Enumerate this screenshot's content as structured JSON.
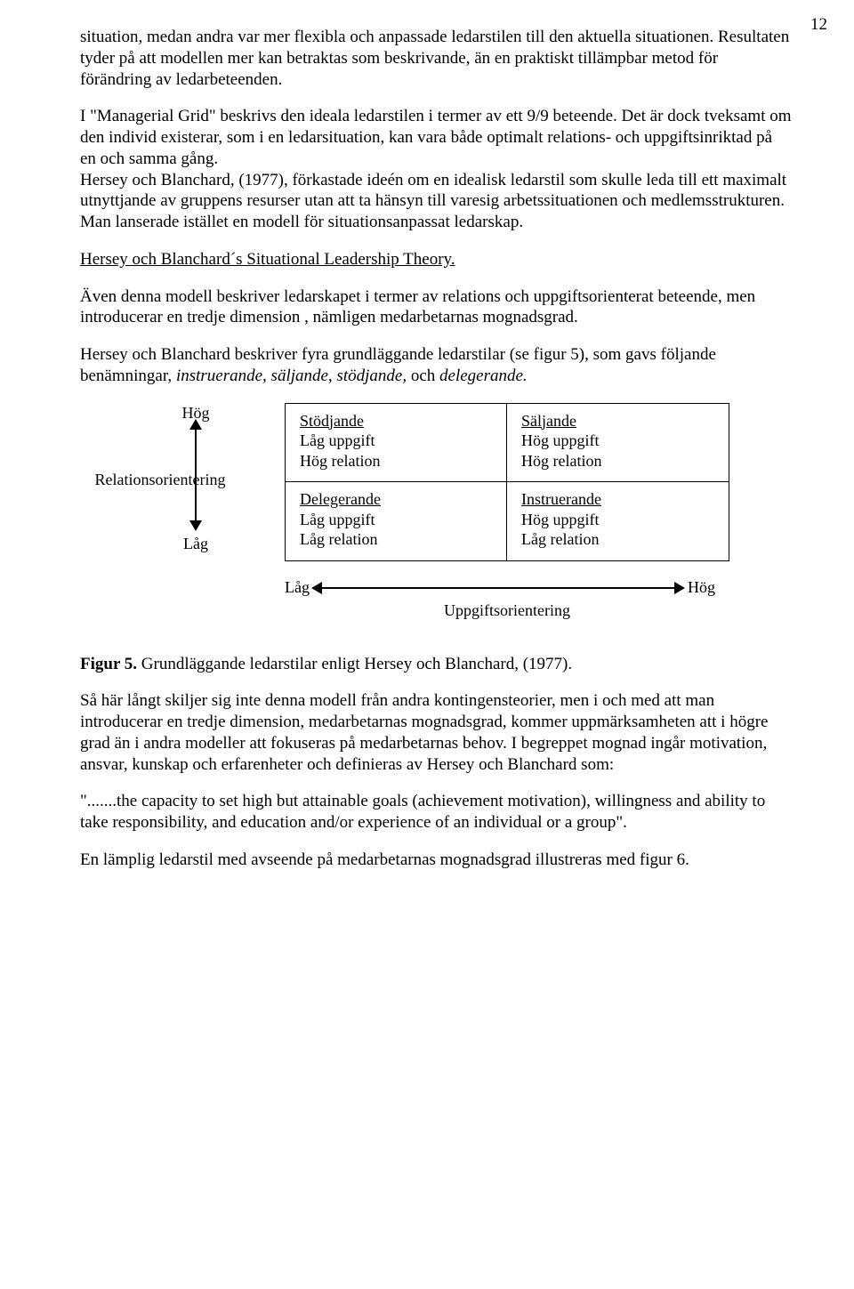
{
  "page_number": "12",
  "paragraphs": {
    "p1": "situation, medan andra var mer flexibla och anpassade ledarstilen till den aktuella situationen. Resultaten tyder på att modellen mer kan betraktas som beskrivande, än en praktiskt tillämpbar metod för förändring av ledarbeteenden.",
    "p2": "I \"Managerial Grid\" beskrivs den ideala ledarstilen i termer av ett 9/9 beteende. Det är dock tveksamt om den individ existerar, som i en ledarsituation, kan vara både optimalt relations- och uppgiftsinriktad på en och samma gång.",
    "p3": "Hersey och Blanchard, (1977), förkastade ideén om en idealisk ledarstil som skulle leda till ett maximalt utnyttjande av gruppens resurser utan att ta hänsyn till varesig arbetssituationen och medlemsstrukturen. Man lanserade istället en modell för situationsanpassat ledarskap.",
    "heading": "Hersey och Blanchard´s Situational Leadership Theory.",
    "p4": "Även denna modell beskriver ledarskapet i termer av relations och uppgiftsorienterat beteende, men introducerar en tredje dimension , nämligen medarbetarnas mognadsgrad.",
    "p5_a": "Hersey och Blanchard beskriver fyra grundläggande ledarstilar (se figur 5), som gavs följande benämningar, ",
    "p5_i": "instruerande, säljande, stödjande,",
    "p5_b": " och ",
    "p5_i2": "delegerande.",
    "caption_b": "Figur 5.",
    "caption": " Grundläggande ledarstilar enligt Hersey och Blanchard, (1977).",
    "p6": "Så här långt skiljer sig inte denna modell från andra kontingensteorier, men i och med att man introducerar en tredje dimension, medarbetarnas mognadsgrad, kommer uppmärksamheten att i högre grad än i andra modeller att fokuseras på medarbetarnas behov. I begreppet mognad ingår motivation, ansvar, kunskap och erfarenheter och definieras av Hersey och Blanchard som:",
    "p7": "\".......the capacity to set high but attainable goals (achievement motivation), willingness and ability to take responsibility, and education and/or experience of an individual or a group\".",
    "p8": "En lämplig ledarstil med avseende på medarbetarnas mognadsgrad illustreras med figur 6."
  },
  "figure": {
    "y_high": "Hög",
    "y_low": "Låg",
    "y_label": "Relationsorientering",
    "x_low": "Låg",
    "x_high": "Hög",
    "x_label": "Uppgiftsorientering",
    "cells": {
      "tl": {
        "title": "Stödjande",
        "l1": "Låg uppgift",
        "l2": "Hög relation"
      },
      "tr": {
        "title": "Säljande",
        "l1": "Hög uppgift",
        "l2": "Hög relation"
      },
      "bl": {
        "title": "Delegerande",
        "l1": "Låg uppgift",
        "l2": "Låg relation"
      },
      "br": {
        "title": "Instruerande",
        "l1": "Hög uppgift",
        "l2": "Låg relation"
      }
    }
  }
}
